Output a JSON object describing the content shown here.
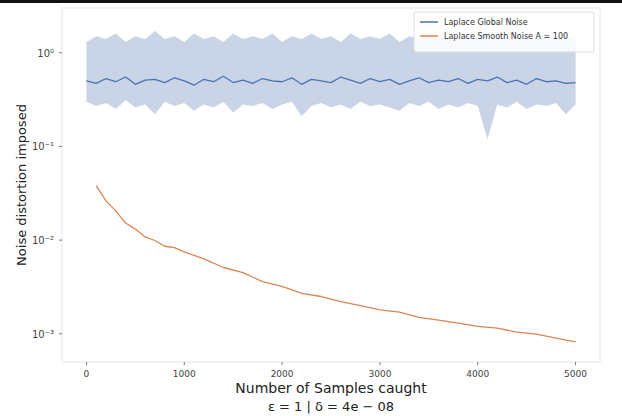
{
  "chart_data": {
    "type": "line",
    "title": "ε = 1 | δ = 4e − 08",
    "x_label": "Number of Samples caught",
    "y_label": "Noise distortion imposed",
    "log": "y",
    "grid": false,
    "legend": "upper right",
    "xlim": [
      -250,
      5250
    ],
    "xticks": [
      0,
      1000,
      2000,
      3000,
      4000,
      5000
    ],
    "ylim": [
      0.0005,
      3
    ],
    "yticks": [
      {
        "value": 1,
        "label": "10⁰"
      },
      {
        "value": 0.1,
        "label": "10⁻¹"
      },
      {
        "value": 0.01,
        "label": "10⁻²"
      },
      {
        "value": 0.001,
        "label": "10⁻³"
      }
    ],
    "series": [
      {
        "name": "Laplace Global Noise",
        "color": "#4c72b0",
        "x": [
          0,
          100,
          200,
          300,
          400,
          500,
          600,
          700,
          800,
          900,
          1000,
          1100,
          1200,
          1300,
          1400,
          1500,
          1600,
          1700,
          1800,
          1900,
          2000,
          2100,
          2200,
          2300,
          2400,
          2500,
          2600,
          2700,
          2800,
          2900,
          3000,
          3100,
          3200,
          3300,
          3400,
          3500,
          3600,
          3700,
          3800,
          3900,
          4000,
          4100,
          4200,
          4300,
          4400,
          4500,
          4600,
          4700,
          4800,
          4900,
          5000
        ],
        "values": [
          0.5,
          0.47,
          0.53,
          0.49,
          0.55,
          0.46,
          0.51,
          0.52,
          0.48,
          0.54,
          0.5,
          0.45,
          0.52,
          0.49,
          0.56,
          0.48,
          0.51,
          0.47,
          0.53,
          0.5,
          0.49,
          0.54,
          0.46,
          0.52,
          0.5,
          0.48,
          0.55,
          0.51,
          0.47,
          0.53,
          0.49,
          0.52,
          0.46,
          0.5,
          0.54,
          0.48,
          0.51,
          0.49,
          0.53,
          0.47,
          0.52,
          0.5,
          0.55,
          0.48,
          0.51,
          0.46,
          0.53,
          0.49,
          0.5,
          0.47,
          0.48
        ],
        "lower": [
          0.3,
          0.27,
          0.29,
          0.25,
          0.31,
          0.26,
          0.28,
          0.22,
          0.3,
          0.27,
          0.29,
          0.24,
          0.28,
          0.26,
          0.3,
          0.23,
          0.28,
          0.27,
          0.29,
          0.25,
          0.28,
          0.3,
          0.21,
          0.27,
          0.29,
          0.26,
          0.28,
          0.25,
          0.3,
          0.27,
          0.28,
          0.26,
          0.24,
          0.29,
          0.27,
          0.3,
          0.25,
          0.28,
          0.26,
          0.29,
          0.27,
          0.12,
          0.28,
          0.26,
          0.3,
          0.25,
          0.28,
          0.27,
          0.29,
          0.22,
          0.28
        ],
        "upper": [
          1.3,
          1.5,
          1.4,
          1.6,
          1.3,
          1.5,
          1.4,
          1.7,
          1.4,
          1.5,
          1.3,
          1.6,
          1.4,
          1.5,
          1.3,
          1.6,
          1.4,
          1.5,
          1.4,
          1.6,
          1.3,
          1.5,
          1.4,
          1.6,
          1.4,
          1.5,
          1.3,
          1.6,
          1.4,
          1.5,
          1.4,
          1.6,
          1.3,
          1.5,
          1.4,
          1.7,
          1.4,
          1.5,
          1.3,
          1.6,
          1.4,
          1.5,
          1.4,
          1.6,
          1.3,
          1.5,
          1.4,
          1.6,
          1.4,
          1.5,
          1.4
        ]
      },
      {
        "name": "Laplace Smooth Noise A = 100",
        "color": "#dd8452",
        "x": [
          100,
          200,
          300,
          400,
          500,
          600,
          700,
          800,
          900,
          1000,
          1200,
          1400,
          1600,
          1800,
          2000,
          2200,
          2400,
          2600,
          2800,
          3000,
          3200,
          3400,
          3600,
          3800,
          4000,
          4200,
          4400,
          4600,
          4800,
          5000
        ],
        "values": [
          0.0381,
          0.0262,
          0.0205,
          0.0152,
          0.0131,
          0.0108,
          0.0099,
          0.0086,
          0.0083,
          0.0075,
          0.0063,
          0.0051,
          0.0045,
          0.0036,
          0.0032,
          0.0027,
          0.0025,
          0.0022,
          0.002,
          0.0018,
          0.0017,
          0.0015,
          0.0014,
          0.0013,
          0.0012,
          0.00115,
          0.00104,
          0.00099,
          0.0009,
          0.00082
        ]
      }
    ]
  }
}
